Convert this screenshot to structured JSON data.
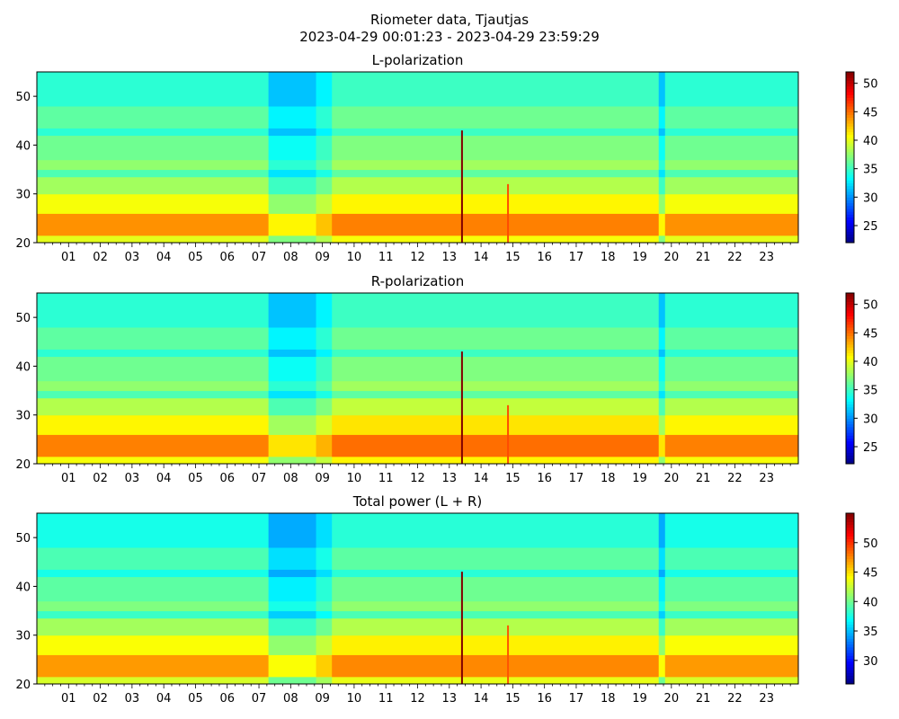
{
  "figure": {
    "title_line1": "Riometer data, Tjautjas",
    "title_line2": "2023-04-29 00:01:23 - 2023-04-29 23:59:29"
  },
  "colormap": "jet",
  "chart_data": [
    {
      "type": "heatmap",
      "title": "L-polarization",
      "xlabel": "",
      "ylabel": "",
      "x_range_hours": [
        0,
        24
      ],
      "x_tick_labels": [
        "01",
        "02",
        "03",
        "04",
        "05",
        "06",
        "07",
        "08",
        "09",
        "10",
        "11",
        "12",
        "13",
        "14",
        "15",
        "16",
        "17",
        "18",
        "19",
        "20",
        "21",
        "22",
        "23"
      ],
      "ylim": [
        20,
        55
      ],
      "y_ticks": [
        20,
        30,
        40,
        50
      ],
      "colorbar": {
        "range": [
          22,
          52
        ],
        "ticks": [
          25,
          30,
          35,
          40,
          45,
          50
        ]
      },
      "bands": [
        {
          "y": [
            20.0,
            21.5
          ],
          "value": 40
        },
        {
          "y": [
            21.5,
            26.0
          ],
          "value": 44
        },
        {
          "y": [
            26.0,
            30.0
          ],
          "value": 40.5
        },
        {
          "y": [
            30.0,
            33.5
          ],
          "value": 38
        },
        {
          "y": [
            33.5,
            35.0
          ],
          "value": 35.5
        },
        {
          "y": [
            35.0,
            37.0
          ],
          "value": 37.5
        },
        {
          "y": [
            37.0,
            42.0
          ],
          "value": 36.5
        },
        {
          "y": [
            42.0,
            43.5
          ],
          "value": 34.5
        },
        {
          "y": [
            43.5,
            48.0
          ],
          "value": 36
        },
        {
          "y": [
            48.0,
            55.0
          ],
          "value": 34.5
        }
      ],
      "time_segments": [
        {
          "x": [
            0.0,
            7.3
          ],
          "offset": 0
        },
        {
          "x": [
            7.3,
            8.8
          ],
          "offset": -3
        },
        {
          "x": [
            8.8,
            9.3
          ],
          "offset": -1.5
        },
        {
          "x": [
            9.3,
            19.6
          ],
          "offset": 0.5
        },
        {
          "x": [
            19.6,
            19.8
          ],
          "offset": -3
        },
        {
          "x": [
            19.8,
            24.0
          ],
          "offset": 0
        }
      ],
      "spikes": [
        {
          "x": 13.4,
          "y_top": 43,
          "value": 52
        },
        {
          "x": 14.85,
          "y_top": 32,
          "value": 46
        }
      ]
    },
    {
      "type": "heatmap",
      "title": "R-polarization",
      "xlabel": "",
      "ylabel": "",
      "x_range_hours": [
        0,
        24
      ],
      "x_tick_labels": [
        "01",
        "02",
        "03",
        "04",
        "05",
        "06",
        "07",
        "08",
        "09",
        "10",
        "11",
        "12",
        "13",
        "14",
        "15",
        "16",
        "17",
        "18",
        "19",
        "20",
        "21",
        "22",
        "23"
      ],
      "ylim": [
        20,
        55
      ],
      "y_ticks": [
        20,
        30,
        40,
        50
      ],
      "colorbar": {
        "range": [
          22,
          52
        ],
        "ticks": [
          25,
          30,
          35,
          40,
          45,
          50
        ]
      },
      "bands": [
        {
          "y": [
            20.0,
            21.5
          ],
          "value": 40.5
        },
        {
          "y": [
            21.5,
            26.0
          ],
          "value": 44.5
        },
        {
          "y": [
            26.0,
            30.0
          ],
          "value": 41
        },
        {
          "y": [
            30.0,
            33.5
          ],
          "value": 38.5
        },
        {
          "y": [
            33.5,
            35.0
          ],
          "value": 35.5
        },
        {
          "y": [
            35.0,
            37.0
          ],
          "value": 37.5
        },
        {
          "y": [
            37.0,
            42.0
          ],
          "value": 36.5
        },
        {
          "y": [
            42.0,
            43.5
          ],
          "value": 34.5
        },
        {
          "y": [
            43.5,
            48.0
          ],
          "value": 36
        },
        {
          "y": [
            48.0,
            55.0
          ],
          "value": 34.5
        }
      ],
      "time_segments": [
        {
          "x": [
            0.0,
            7.3
          ],
          "offset": 0
        },
        {
          "x": [
            7.3,
            8.8
          ],
          "offset": -3
        },
        {
          "x": [
            8.8,
            9.3
          ],
          "offset": -1.5
        },
        {
          "x": [
            9.3,
            19.6
          ],
          "offset": 0.5
        },
        {
          "x": [
            19.6,
            19.8
          ],
          "offset": -3
        },
        {
          "x": [
            19.8,
            24.0
          ],
          "offset": 0
        }
      ],
      "spikes": [
        {
          "x": 13.4,
          "y_top": 43,
          "value": 52
        },
        {
          "x": 14.85,
          "y_top": 32,
          "value": 46
        }
      ]
    },
    {
      "type": "heatmap",
      "title": "Total power (L + R)",
      "xlabel": "",
      "ylabel": "",
      "x_range_hours": [
        0,
        24
      ],
      "x_tick_labels": [
        "01",
        "02",
        "03",
        "04",
        "05",
        "06",
        "07",
        "08",
        "09",
        "10",
        "11",
        "12",
        "13",
        "14",
        "15",
        "16",
        "17",
        "18",
        "19",
        "20",
        "21",
        "22",
        "23"
      ],
      "ylim": [
        20,
        55
      ],
      "y_ticks": [
        20,
        30,
        40,
        50
      ],
      "colorbar": {
        "range": [
          26,
          55
        ],
        "ticks": [
          30,
          35,
          40,
          45,
          50
        ]
      },
      "bands": [
        {
          "y": [
            20.0,
            21.5
          ],
          "value": 43
        },
        {
          "y": [
            21.5,
            26.0
          ],
          "value": 47
        },
        {
          "y": [
            26.0,
            30.0
          ],
          "value": 44
        },
        {
          "y": [
            30.0,
            33.5
          ],
          "value": 41.5
        },
        {
          "y": [
            33.5,
            35.0
          ],
          "value": 38.5
        },
        {
          "y": [
            35.0,
            37.0
          ],
          "value": 40.5
        },
        {
          "y": [
            37.0,
            42.0
          ],
          "value": 39.5
        },
        {
          "y": [
            42.0,
            43.5
          ],
          "value": 37.5
        },
        {
          "y": [
            43.5,
            48.0
          ],
          "value": 39
        },
        {
          "y": [
            48.0,
            55.0
          ],
          "value": 37.5
        }
      ],
      "time_segments": [
        {
          "x": [
            0.0,
            7.3
          ],
          "offset": 0
        },
        {
          "x": [
            7.3,
            8.8
          ],
          "offset": -3
        },
        {
          "x": [
            8.8,
            9.3
          ],
          "offset": -1.5
        },
        {
          "x": [
            9.3,
            19.6
          ],
          "offset": 0.5
        },
        {
          "x": [
            19.6,
            19.8
          ],
          "offset": -3
        },
        {
          "x": [
            19.8,
            24.0
          ],
          "offset": 0
        }
      ],
      "spikes": [
        {
          "x": 13.4,
          "y_top": 43,
          "value": 55
        },
        {
          "x": 14.85,
          "y_top": 32,
          "value": 49
        }
      ]
    }
  ]
}
